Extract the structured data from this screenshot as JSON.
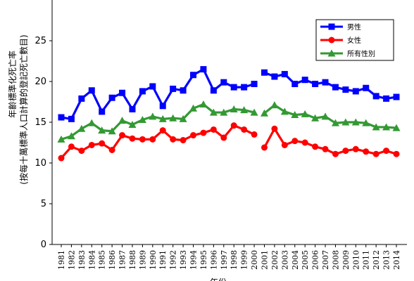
{
  "chart_data": {
    "type": "line",
    "title": "",
    "ylabel": "年齡標準化死亡率",
    "ylabel_sub": "(按每十萬標準人口計算的登記死亡數目)",
    "xlabel": "年份",
    "ylim": [
      0,
      30
    ],
    "yticks": [
      0,
      5,
      10,
      15,
      20,
      25
    ],
    "grid": false,
    "legend_position": "top-right",
    "x": [
      "1981",
      "1982",
      "1983",
      "1984",
      "1985",
      "1986",
      "1987",
      "1988",
      "1989",
      "1990",
      "1991",
      "1992",
      "1993",
      "1994",
      "1995",
      "1996",
      "1997",
      "1998",
      "1999",
      "2000",
      "2001",
      "2002",
      "2003",
      "2004",
      "2005",
      "2006",
      "2007",
      "2008",
      "2009",
      "2010",
      "2011",
      "2012",
      "2013",
      "2014"
    ],
    "series": [
      {
        "name": "男性",
        "color": "#0000ff",
        "marker": "square",
        "values": [
          15.6,
          15.4,
          17.9,
          18.9,
          16.3,
          18.0,
          18.6,
          16.6,
          18.8,
          19.4,
          17.0,
          19.1,
          18.9,
          20.8,
          21.5,
          18.9,
          19.9,
          19.3,
          19.3,
          19.7,
          21.1,
          20.6,
          20.9,
          19.7,
          20.2,
          19.7,
          19.9,
          19.3,
          19.0,
          18.8,
          19.2,
          18.2,
          17.9,
          18.1
        ]
      },
      {
        "name": "女性",
        "color": "#ff0000",
        "marker": "circle",
        "values": [
          10.6,
          12.0,
          11.5,
          12.2,
          12.4,
          11.6,
          13.4,
          13.0,
          12.9,
          12.9,
          14.0,
          12.9,
          12.8,
          13.4,
          13.7,
          14.1,
          13.1,
          14.6,
          14.1,
          13.5,
          11.9,
          14.2,
          12.2,
          12.7,
          12.5,
          12.0,
          11.7,
          11.1,
          11.5,
          11.7,
          11.4,
          11.1,
          11.5,
          11.1
        ]
      },
      {
        "name": "所有性別",
        "color": "#339933",
        "marker": "triangle",
        "values": [
          12.9,
          13.3,
          14.2,
          14.9,
          14.0,
          13.9,
          15.2,
          14.7,
          15.3,
          15.7,
          15.4,
          15.5,
          15.4,
          16.7,
          17.2,
          16.2,
          16.2,
          16.6,
          16.5,
          16.2,
          16.1,
          17.1,
          16.3,
          15.9,
          16.0,
          15.5,
          15.7,
          14.9,
          15.0,
          15.0,
          14.9,
          14.4,
          14.4,
          14.3
        ]
      }
    ]
  }
}
